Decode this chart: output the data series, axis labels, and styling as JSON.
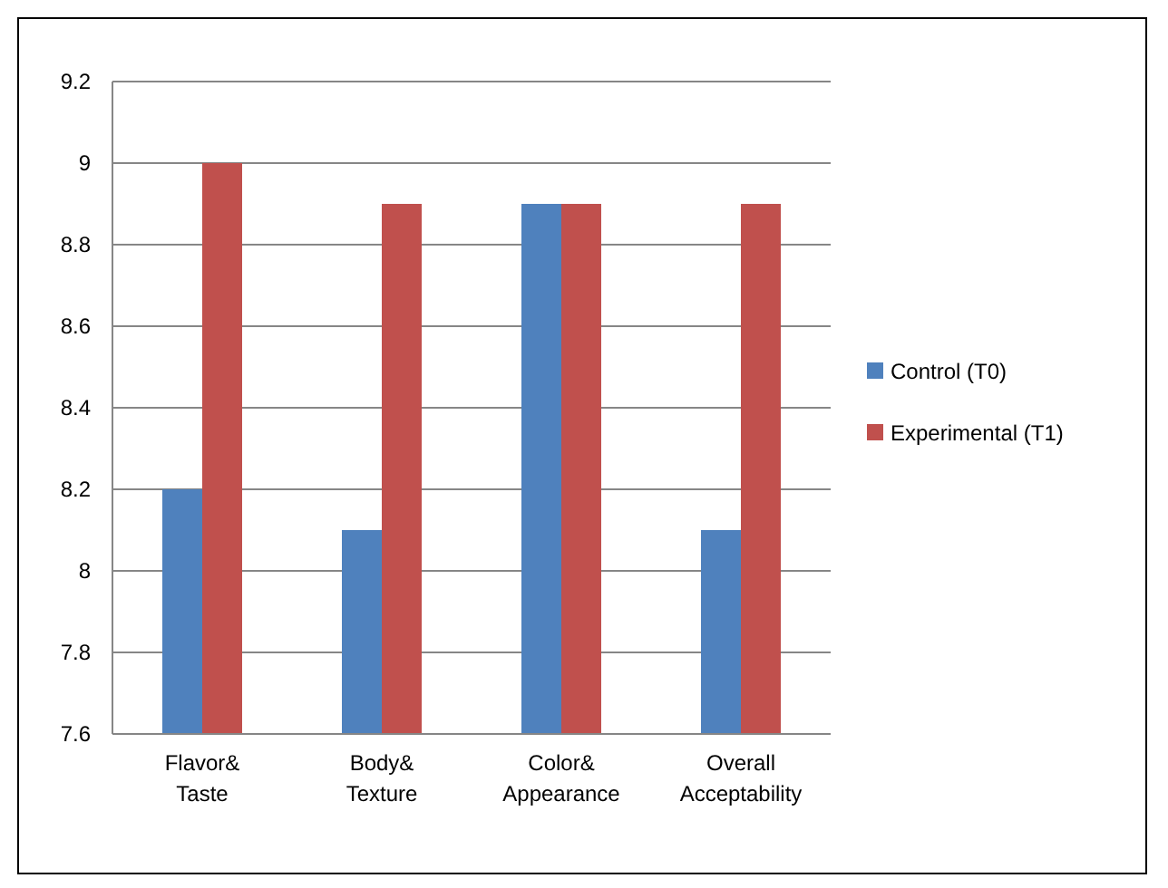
{
  "chart_data": {
    "type": "bar",
    "categories": [
      "Flavor& Taste",
      "Body& Texture",
      "Color& Appearance",
      "Overall Acceptability"
    ],
    "series": [
      {
        "name": "Control (T0)",
        "color": "#4f81bd",
        "values": [
          8.2,
          8.1,
          8.9,
          8.1
        ]
      },
      {
        "name": "Experimental (T1)",
        "color": "#c0504d",
        "values": [
          9.0,
          8.9,
          8.9,
          8.9
        ]
      }
    ],
    "ylim": [
      7.6,
      9.2
    ],
    "yticks": [
      7.6,
      7.8,
      8,
      8.2,
      8.4,
      8.6,
      8.8,
      9,
      9.2
    ],
    "grid": "y",
    "legend": "right"
  }
}
